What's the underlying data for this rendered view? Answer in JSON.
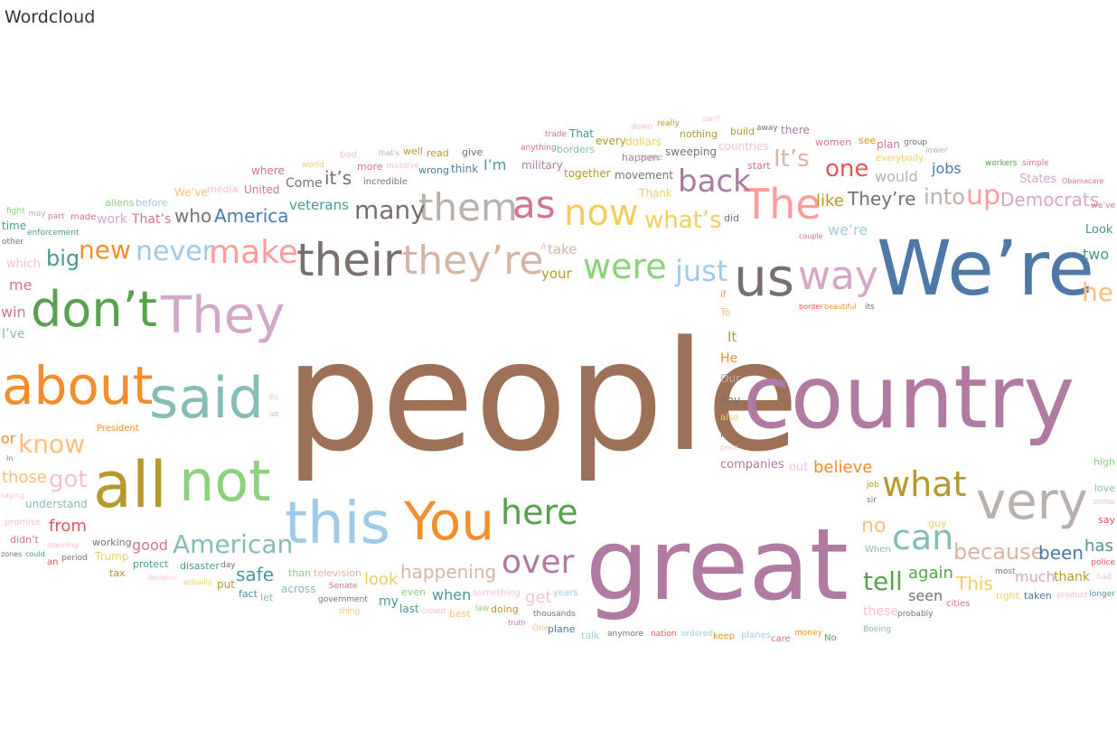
{
  "title": "Wordcloud",
  "chart_data": {
    "type": "wordcloud",
    "title": "Wordcloud",
    "words": [
      {
        "text": "people",
        "color": "#9c7158"
      },
      {
        "text": "country",
        "color": "#b17aa2"
      },
      {
        "text": "great",
        "color": "#b17aa2"
      },
      {
        "text": "We’re",
        "color": "#4e79a7"
      },
      {
        "text": "They",
        "color": "#d4a6c8"
      },
      {
        "text": "about",
        "color": "#f28e2b"
      },
      {
        "text": "don’t",
        "color": "#59a14f"
      },
      {
        "text": "said",
        "color": "#86bcb6"
      },
      {
        "text": "all",
        "color": "#b6992d"
      },
      {
        "text": "not",
        "color": "#8cd17d"
      },
      {
        "text": "this",
        "color": "#a0cbe8"
      },
      {
        "text": "You",
        "color": "#f28e2b"
      },
      {
        "text": "very",
        "color": "#bab0ac"
      },
      {
        "text": "us",
        "color": "#79706e"
      },
      {
        "text": "way",
        "color": "#d4a6c8"
      },
      {
        "text": "their",
        "color": "#79706e"
      },
      {
        "text": "they’re",
        "color": "#d7b5a6"
      },
      {
        "text": "them",
        "color": "#bab0ac"
      },
      {
        "text": "as",
        "color": "#d37295"
      },
      {
        "text": "now",
        "color": "#f1ce63"
      },
      {
        "text": "The",
        "color": "#ff9d9a"
      },
      {
        "text": "back",
        "color": "#a87c9f"
      },
      {
        "text": "make",
        "color": "#ff9d9a"
      },
      {
        "text": "never",
        "color": "#a0cbe8"
      },
      {
        "text": "new",
        "color": "#f28e2b"
      },
      {
        "text": "big",
        "color": "#499894"
      },
      {
        "text": "were",
        "color": "#8cd17d"
      },
      {
        "text": "just",
        "color": "#a0cbe8"
      },
      {
        "text": "what’s",
        "color": "#f1ce63"
      },
      {
        "text": "here",
        "color": "#59a14f"
      },
      {
        "text": "over",
        "color": "#b17aa2"
      },
      {
        "text": "what",
        "color": "#b6992d"
      },
      {
        "text": "can",
        "color": "#86bcb6"
      },
      {
        "text": "American",
        "color": "#86bcb6"
      },
      {
        "text": "know",
        "color": "#ffbe7d"
      },
      {
        "text": "got",
        "color": "#fabfd2"
      },
      {
        "text": "tell",
        "color": "#59a14f"
      },
      {
        "text": "because",
        "color": "#d7b5a6"
      },
      {
        "text": "many",
        "color": "#79706e"
      },
      {
        "text": "one",
        "color": "#e15759"
      },
      {
        "text": "up",
        "color": "#ff9d9a"
      },
      {
        "text": "into",
        "color": "#bab0ac"
      },
      {
        "text": "It’s",
        "color": "#d7b5a6"
      },
      {
        "text": "Democrats",
        "color": "#d4a6c8"
      },
      {
        "text": "America",
        "color": "#4e79a7"
      },
      {
        "text": "who",
        "color": "#79706e"
      },
      {
        "text": "happening",
        "color": "#d7b5a6"
      },
      {
        "text": "They’re",
        "color": "#79706e"
      },
      {
        "text": "like",
        "color": "#b6992d"
      },
      {
        "text": "it’s",
        "color": "#79706e"
      },
      {
        "text": "he",
        "color": "#ffbe7d"
      },
      {
        "text": "safe",
        "color": "#499894"
      },
      {
        "text": "been",
        "color": "#4e79a7"
      },
      {
        "text": "This",
        "color": "#f1ce63"
      },
      {
        "text": "no",
        "color": "#ffbe7d"
      },
      {
        "text": "has",
        "color": "#499894"
      },
      {
        "text": "believe",
        "color": "#f28e2b"
      },
      {
        "text": "from",
        "color": "#e15759"
      },
      {
        "text": "those",
        "color": "#ffbe7d"
      },
      {
        "text": "again",
        "color": "#59a14f"
      },
      {
        "text": "look",
        "color": "#f1ce63"
      },
      {
        "text": "get",
        "color": "#fabfd2"
      },
      {
        "text": "when",
        "color": "#499894"
      },
      {
        "text": "seen",
        "color": "#79706e"
      },
      {
        "text": "much",
        "color": "#d4a6c8"
      },
      {
        "text": "thank",
        "color": "#b6992d"
      },
      {
        "text": "jobs",
        "color": "#4e79a7"
      },
      {
        "text": "would",
        "color": "#bab0ac"
      },
      {
        "text": "Come",
        "color": "#79706e"
      },
      {
        "text": "veterans",
        "color": "#499894"
      },
      {
        "text": "we’re",
        "color": "#a0cbe8"
      },
      {
        "text": "two",
        "color": "#499894"
      },
      {
        "text": "good",
        "color": "#d37295"
      },
      {
        "text": "I’m",
        "color": "#499894"
      },
      {
        "text": "win",
        "color": "#d37295"
      },
      {
        "text": "me",
        "color": "#d37295"
      },
      {
        "text": "or",
        "color": "#f28e2b"
      },
      {
        "text": "I’ve",
        "color": "#86bcb6"
      },
      {
        "text": "That’s",
        "color": "#d37295"
      },
      {
        "text": "work",
        "color": "#d4a6c8"
      },
      {
        "text": "time",
        "color": "#499894"
      },
      {
        "text": "which",
        "color": "#fabfd2"
      },
      {
        "text": "Look",
        "color": "#499894"
      },
      {
        "text": "States",
        "color": "#d4a6c8"
      },
      {
        "text": "companies",
        "color": "#b17aa2"
      },
      {
        "text": "out",
        "color": "#fabfd2"
      },
      {
        "text": "my",
        "color": "#499894"
      },
      {
        "text": "last",
        "color": "#499894"
      },
      {
        "text": "fact",
        "color": "#499894"
      },
      {
        "text": "your",
        "color": "#b6992d"
      },
      {
        "text": "take",
        "color": "#d7b5a6"
      },
      {
        "text": "Thank",
        "color": "#f1ce63"
      },
      {
        "text": "United",
        "color": "#d37295"
      },
      {
        "text": "where",
        "color": "#d37295"
      },
      {
        "text": "movement",
        "color": "#79706e"
      },
      {
        "text": "together",
        "color": "#b6992d"
      },
      {
        "text": "military",
        "color": "#b17aa2"
      },
      {
        "text": "think",
        "color": "#4e79a7"
      },
      {
        "text": "incredible",
        "color": "#79706e"
      },
      {
        "text": "understand",
        "color": "#86bcb6"
      },
      {
        "text": "It",
        "color": "#b6992d"
      },
      {
        "text": "He",
        "color": "#f28e2b"
      },
      {
        "text": "Our",
        "color": "#bab0ac"
      },
      {
        "text": "any",
        "color": "#79706e"
      },
      {
        "text": "also",
        "color": "#f1ce63"
      },
      {
        "text": "him",
        "color": "#9c7158"
      },
      {
        "text": "everybody",
        "color": "#f1ce63"
      },
      {
        "text": "women",
        "color": "#d37295"
      },
      {
        "text": "start",
        "color": "#d37295"
      },
      {
        "text": "did",
        "color": "#79706e"
      },
      {
        "text": "every",
        "color": "#b6992d"
      },
      {
        "text": "dollars",
        "color": "#f1ce63"
      },
      {
        "text": "sweeping",
        "color": "#79706e"
      },
      {
        "text": "countries",
        "color": "#fabfd2"
      },
      {
        "text": "happen",
        "color": "#b17aa2"
      },
      {
        "text": "come",
        "color": "#bab0ac"
      },
      {
        "text": "nothing",
        "color": "#b6992d"
      },
      {
        "text": "That",
        "color": "#499894"
      },
      {
        "text": "borders",
        "color": "#86bcb6"
      },
      {
        "text": "read",
        "color": "#b6992d"
      },
      {
        "text": "well",
        "color": "#b6992d"
      },
      {
        "text": "give",
        "color": "#79706e"
      },
      {
        "text": "wrong",
        "color": "#4e79a7"
      },
      {
        "text": "more",
        "color": "#d37295"
      },
      {
        "text": "bad",
        "color": "#fabfd2"
      },
      {
        "text": "across",
        "color": "#86bcb6"
      },
      {
        "text": "Trump",
        "color": "#f1ce63"
      },
      {
        "text": "working",
        "color": "#79706e"
      },
      {
        "text": "protect",
        "color": "#499894"
      },
      {
        "text": "disaster",
        "color": "#499894"
      },
      {
        "text": "put",
        "color": "#b6992d"
      },
      {
        "text": "let",
        "color": "#86bcb6"
      },
      {
        "text": "tax",
        "color": "#b6992d"
      },
      {
        "text": "than",
        "color": "#8cd17d"
      },
      {
        "text": "television",
        "color": "#d7b5a6"
      },
      {
        "text": "government",
        "color": "#79706e"
      },
      {
        "text": "Senate",
        "color": "#d37295"
      },
      {
        "text": "thing",
        "color": "#f1ce63"
      },
      {
        "text": "even",
        "color": "#8cd17d"
      },
      {
        "text": "crowd",
        "color": "#fabfd2"
      },
      {
        "text": "law",
        "color": "#8cd17d"
      },
      {
        "text": "best",
        "color": "#ffbe7d"
      },
      {
        "text": "doing",
        "color": "#b6992d"
      },
      {
        "text": "something",
        "color": "#fabfd2"
      },
      {
        "text": "thousands",
        "color": "#79706e"
      },
      {
        "text": "truth",
        "color": "#d37295"
      },
      {
        "text": "One",
        "color": "#ffbe7d"
      },
      {
        "text": "plane",
        "color": "#4e79a7"
      },
      {
        "text": "years",
        "color": "#a0cbe8"
      },
      {
        "text": "talk",
        "color": "#a0cbe8"
      },
      {
        "text": "anymore",
        "color": "#79706e"
      },
      {
        "text": "nation",
        "color": "#e15759"
      },
      {
        "text": "ordered",
        "color": "#a0cbe8"
      },
      {
        "text": "keep",
        "color": "#f28e2b"
      },
      {
        "text": "planes",
        "color": "#a0cbe8"
      },
      {
        "text": "care",
        "color": "#d37295"
      },
      {
        "text": "money",
        "color": "#f28e2b"
      },
      {
        "text": "No",
        "color": "#59a14f"
      },
      {
        "text": "Boeing",
        "color": "#86bcb6"
      },
      {
        "text": "these",
        "color": "#fabfd2"
      },
      {
        "text": "probably",
        "color": "#79706e"
      },
      {
        "text": "cities",
        "color": "#d37295"
      },
      {
        "text": "right",
        "color": "#f1ce63"
      },
      {
        "text": "taken",
        "color": "#4e79a7"
      },
      {
        "text": "product",
        "color": "#fabfd2"
      },
      {
        "text": "longer",
        "color": "#499894"
      },
      {
        "text": "most",
        "color": "#79706e"
      },
      {
        "text": "had",
        "color": "#fabfd2"
      },
      {
        "text": "police",
        "color": "#e15759"
      },
      {
        "text": "say",
        "color": "#e15759"
      },
      {
        "text": "some",
        "color": "#fabfd2"
      },
      {
        "text": "love",
        "color": "#86bcb6"
      },
      {
        "text": "high",
        "color": "#8cd17d"
      },
      {
        "text": "guy",
        "color": "#f1ce63"
      },
      {
        "text": "When",
        "color": "#86bcb6"
      },
      {
        "text": "sir",
        "color": "#79706e"
      },
      {
        "text": "job",
        "color": "#b6992d"
      },
      {
        "text": "price",
        "color": "#fabfd2"
      },
      {
        "text": "border",
        "color": "#e15759"
      },
      {
        "text": "beautiful",
        "color": "#f28e2b"
      },
      {
        "text": "its",
        "color": "#79706e"
      },
      {
        "text": "couple",
        "color": "#d37295"
      },
      {
        "text": "if",
        "color": "#f28e2b"
      },
      {
        "text": "To",
        "color": "#ffbe7d"
      },
      {
        "text": "trade",
        "color": "#d37295"
      },
      {
        "text": "anything",
        "color": "#d37295"
      },
      {
        "text": "down",
        "color": "#fabfd2"
      },
      {
        "text": "really",
        "color": "#b6992d"
      },
      {
        "text": "can’t",
        "color": "#fabfd2"
      },
      {
        "text": "build",
        "color": "#b6992d"
      },
      {
        "text": "away",
        "color": "#79706e"
      },
      {
        "text": "there",
        "color": "#b17aa2"
      },
      {
        "text": "see",
        "color": "#f28e2b"
      },
      {
        "text": "plan",
        "color": "#d37295"
      },
      {
        "text": "group",
        "color": "#79706e"
      },
      {
        "text": "lower",
        "color": "#bab0ac"
      },
      {
        "text": "workers",
        "color": "#59a14f"
      },
      {
        "text": "simple",
        "color": "#d37295"
      },
      {
        "text": "Obamacare",
        "color": "#d37295"
      },
      {
        "text": "we’ve",
        "color": "#d37295"
      },
      {
        "text": "world",
        "color": "#f1ce63"
      },
      {
        "text": "that’s",
        "color": "#bab0ac"
      },
      {
        "text": "massive",
        "color": "#fabfd2"
      },
      {
        "text": "We’ve",
        "color": "#ffbe7d"
      },
      {
        "text": "media",
        "color": "#fabfd2"
      },
      {
        "text": "aliens",
        "color": "#8cd17d"
      },
      {
        "text": "before",
        "color": "#a0cbe8"
      },
      {
        "text": "fight",
        "color": "#8cd17d"
      },
      {
        "text": "may",
        "color": "#bab0ac"
      },
      {
        "text": "part",
        "color": "#d37295"
      },
      {
        "text": "made",
        "color": "#d37295"
      },
      {
        "text": "enforcement",
        "color": "#499894"
      },
      {
        "text": "other",
        "color": "#79706e"
      },
      {
        "text": "By",
        "color": "#fabfd2"
      },
      {
        "text": "lot",
        "color": "#d7b5a6"
      },
      {
        "text": "President",
        "color": "#f28e2b"
      },
      {
        "text": "In",
        "color": "#59a14f"
      },
      {
        "text": "saying",
        "color": "#fabfd2"
      },
      {
        "text": "promise",
        "color": "#fabfd2"
      },
      {
        "text": "didn’t",
        "color": "#d37295"
      },
      {
        "text": "standing",
        "color": "#fabfd2"
      },
      {
        "text": "zones",
        "color": "#79706e"
      },
      {
        "text": "could",
        "color": "#499894"
      },
      {
        "text": "an",
        "color": "#e15759"
      },
      {
        "text": "period",
        "color": "#79706e"
      },
      {
        "text": "decision",
        "color": "#fabfd2"
      },
      {
        "text": "actually",
        "color": "#f1ce63"
      },
      {
        "text": "day",
        "color": "#79706e"
      },
      {
        "text": "A",
        "color": "#fabfd2"
      }
    ]
  }
}
